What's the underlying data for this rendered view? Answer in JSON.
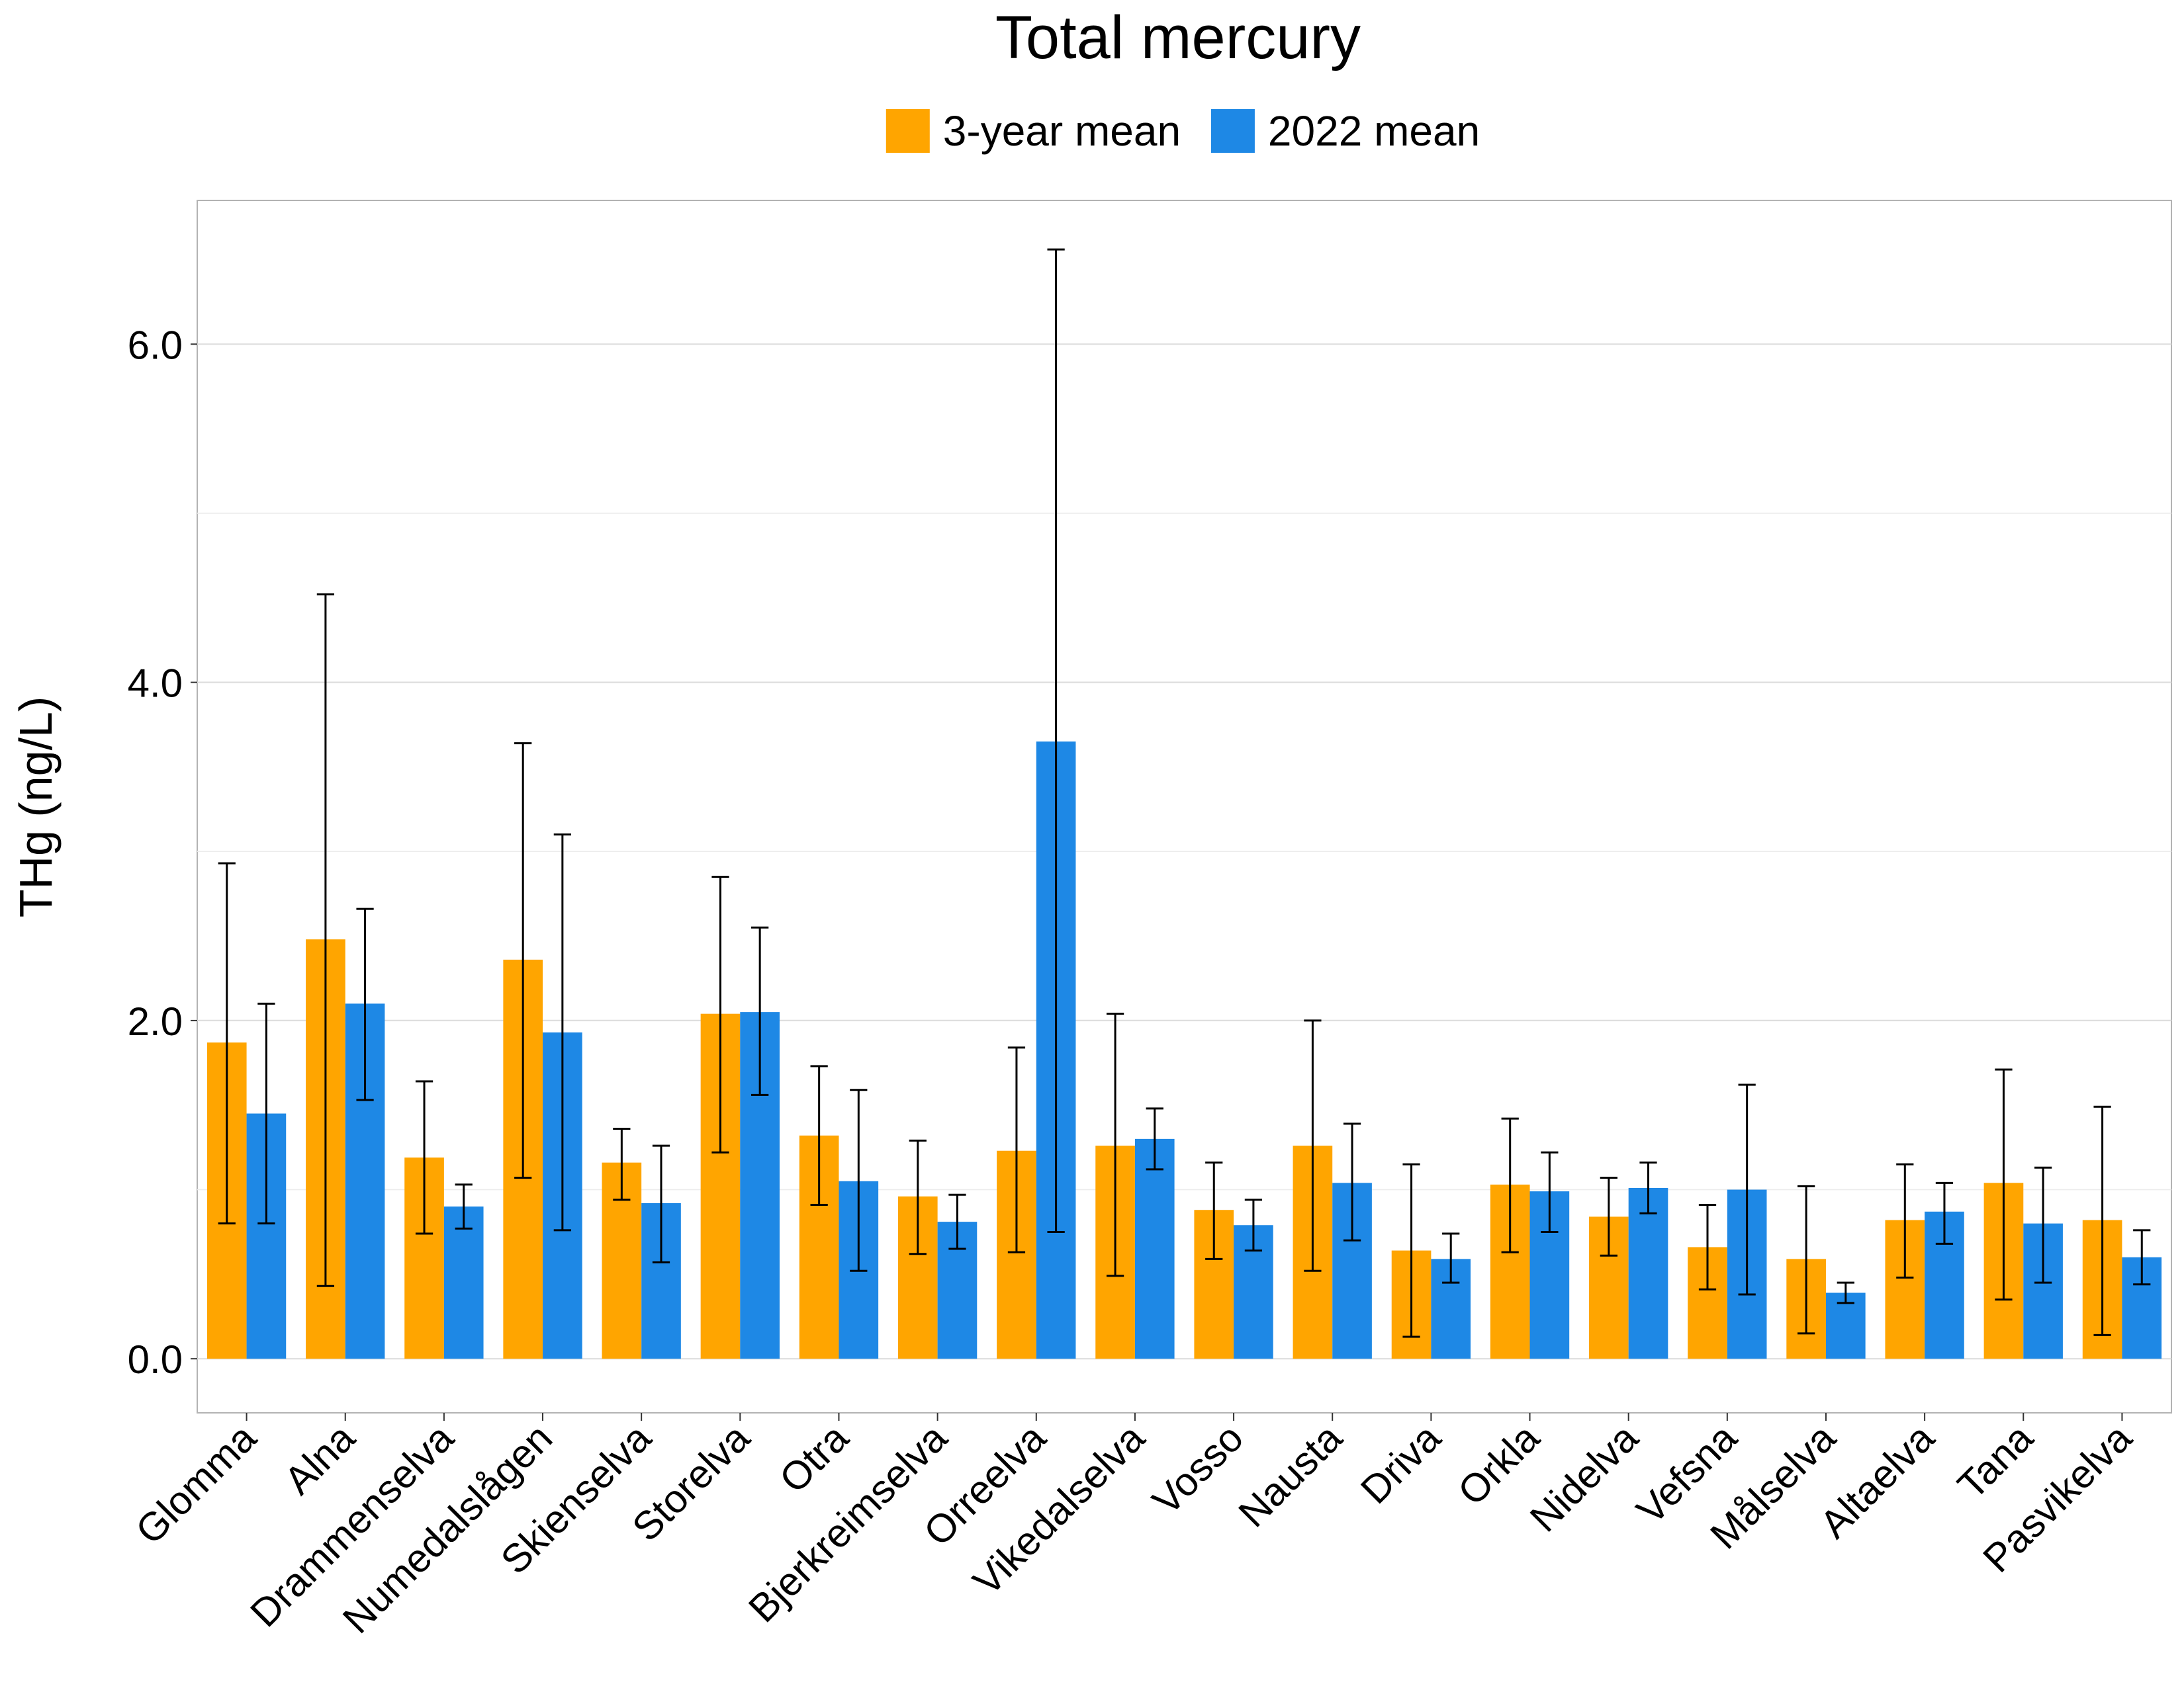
{
  "chart_data": {
    "type": "bar",
    "title": "Total mercury",
    "xlabel": "",
    "ylabel": "THg (ng/L)",
    "ylim": [
      -0.32,
      6.85
    ],
    "yticks": [
      0,
      2,
      4,
      6
    ],
    "ytick_labels": [
      "0.0",
      "2.0",
      "4.0",
      "6.0"
    ],
    "grid": "horizontal",
    "legend_position": "top",
    "categories": [
      "Glomma",
      "Alna",
      "Drammenselva",
      "Numedalslågen",
      "Skienselva",
      "Storelva",
      "Otra",
      "Bjerkreimselva",
      "Orreelva",
      "Vikedalselva",
      "Vosso",
      "Nausta",
      "Driva",
      "Orkla",
      "Nidelva",
      "Vefsna",
      "Målselva",
      "Altaelva",
      "Tana",
      "Pasvikelva"
    ],
    "series": [
      {
        "name": "3-year mean",
        "color": "#FFA500",
        "values": [
          1.87,
          2.48,
          1.19,
          2.36,
          1.16,
          2.04,
          1.32,
          0.96,
          1.23,
          1.26,
          0.88,
          1.26,
          0.64,
          1.03,
          0.84,
          0.66,
          0.59,
          0.82,
          1.04,
          0.82
        ],
        "err_low": [
          0.8,
          0.43,
          0.74,
          1.07,
          0.94,
          1.22,
          0.91,
          0.62,
          0.63,
          0.49,
          0.59,
          0.52,
          0.13,
          0.63,
          0.61,
          0.41,
          0.15,
          0.48,
          0.35,
          0.14
        ],
        "err_high": [
          2.93,
          4.52,
          1.64,
          3.64,
          1.36,
          2.85,
          1.73,
          1.29,
          1.84,
          2.04,
          1.16,
          2.0,
          1.15,
          1.42,
          1.07,
          0.91,
          1.02,
          1.15,
          1.71,
          1.49
        ]
      },
      {
        "name": "2022 mean",
        "color": "#1E88E5",
        "values": [
          1.45,
          2.1,
          0.9,
          1.93,
          0.92,
          2.05,
          1.05,
          0.81,
          3.65,
          1.3,
          0.79,
          1.04,
          0.59,
          0.99,
          1.01,
          1.0,
          0.39,
          0.87,
          0.8,
          0.6
        ],
        "err_low": [
          0.8,
          1.53,
          0.77,
          0.76,
          0.57,
          1.56,
          0.52,
          0.65,
          0.75,
          1.12,
          0.64,
          0.7,
          0.45,
          0.75,
          0.86,
          0.38,
          0.33,
          0.68,
          0.45,
          0.44
        ],
        "err_high": [
          2.1,
          2.66,
          1.03,
          3.1,
          1.26,
          2.55,
          1.59,
          0.97,
          6.56,
          1.48,
          0.94,
          1.39,
          0.74,
          1.22,
          1.16,
          1.62,
          0.45,
          1.04,
          1.13,
          0.76
        ]
      }
    ]
  }
}
